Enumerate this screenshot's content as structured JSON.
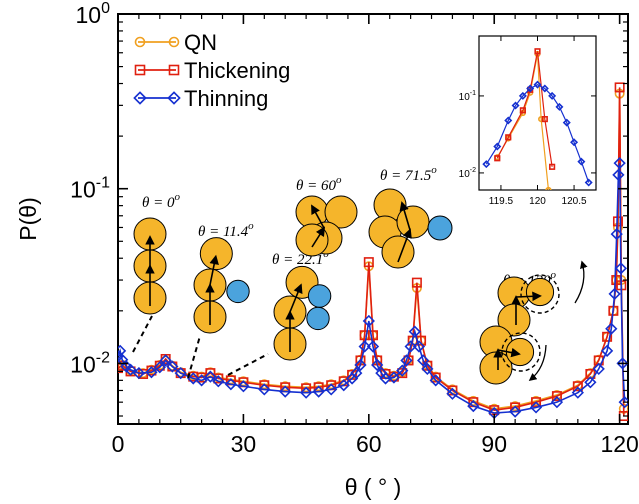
{
  "chart_data": {
    "type": "line",
    "xlabel": "θ ( ° )",
    "ylabel": "P(θ)",
    "xlim": [
      0,
      122
    ],
    "ylim": [
      0.0045,
      1.0
    ],
    "yscale": "log",
    "xticks": [
      0,
      30,
      60,
      90,
      120
    ],
    "xtick_labels": [
      "0",
      "30",
      "60",
      "90",
      "120"
    ],
    "ytick_labels": [
      {
        "base": "10",
        "exp": "0"
      },
      {
        "base": "10",
        "exp": "-1"
      },
      {
        "base": "10",
        "exp": "-2"
      }
    ],
    "grid": false,
    "legend_position": "top-left",
    "series": [
      {
        "name": "QN",
        "color": "#f0a020",
        "marker": "circle",
        "x": [
          0,
          1,
          3,
          6,
          8,
          10,
          11.4,
          13,
          15,
          18,
          20,
          22.1,
          24,
          27,
          30,
          35,
          40,
          45,
          48,
          51,
          54,
          56,
          58,
          59,
          60,
          61,
          62,
          64,
          66,
          68,
          69.5,
          70.5,
          71.5,
          72.5,
          74,
          76,
          80,
          85,
          90,
          95,
          100,
          105,
          110,
          113,
          115,
          117,
          118.5,
          119.2,
          119.6,
          120,
          120.4,
          121
        ],
        "y": [
          0.0095,
          0.0098,
          0.0091,
          0.0088,
          0.0092,
          0.0098,
          0.0104,
          0.0097,
          0.0089,
          0.0085,
          0.0084,
          0.0089,
          0.0083,
          0.0081,
          0.0079,
          0.0076,
          0.0074,
          0.0073,
          0.0074,
          0.0076,
          0.008,
          0.0087,
          0.0105,
          0.0145,
          0.036,
          0.0145,
          0.0105,
          0.0088,
          0.0085,
          0.0089,
          0.0105,
          0.0135,
          0.027,
          0.0135,
          0.0098,
          0.0084,
          0.0071,
          0.0061,
          0.0055,
          0.0057,
          0.0061,
          0.0066,
          0.0075,
          0.0088,
          0.0105,
          0.0142,
          0.02,
          0.03,
          0.06,
          0.35,
          0.03,
          0.0055
        ]
      },
      {
        "name": "Thickening",
        "color": "#e02010",
        "marker": "square",
        "x": [
          0,
          1,
          3,
          6,
          8,
          10,
          11.4,
          13,
          15,
          18,
          20,
          22.1,
          24,
          27,
          30,
          35,
          40,
          45,
          48,
          51,
          54,
          56,
          58,
          59,
          60,
          61,
          62,
          64,
          66,
          68,
          69.5,
          70.5,
          71.5,
          72.5,
          74,
          76,
          80,
          85,
          90,
          95,
          100,
          105,
          110,
          113,
          115,
          117,
          118.5,
          119.2,
          119.6,
          120,
          120.4,
          121
        ],
        "y": [
          0.0094,
          0.0097,
          0.009,
          0.0087,
          0.0091,
          0.0097,
          0.0106,
          0.0096,
          0.0088,
          0.0084,
          0.0083,
          0.0088,
          0.0082,
          0.008,
          0.0078,
          0.0075,
          0.0073,
          0.0072,
          0.0073,
          0.0075,
          0.0079,
          0.0086,
          0.0104,
          0.0145,
          0.038,
          0.0145,
          0.0104,
          0.0087,
          0.0084,
          0.0088,
          0.0104,
          0.0135,
          0.029,
          0.0135,
          0.0097,
          0.0083,
          0.007,
          0.006,
          0.0054,
          0.0056,
          0.006,
          0.0065,
          0.0074,
          0.0087,
          0.0104,
          0.0142,
          0.02,
          0.03,
          0.065,
          0.38,
          0.028,
          0.005
        ]
      },
      {
        "name": "Thinning",
        "color": "#1530d0",
        "marker": "diamond",
        "x": [
          0,
          0.5,
          1,
          2,
          3,
          5,
          8,
          10,
          11.4,
          13,
          15,
          18,
          20,
          22.1,
          24,
          27,
          30,
          35,
          40,
          45,
          48,
          51,
          54,
          56,
          57,
          58,
          59,
          60,
          61,
          62,
          63,
          64,
          66,
          68,
          69,
          70,
          71,
          72,
          73,
          74,
          76,
          80,
          85,
          90,
          95,
          100,
          105,
          110,
          113,
          115,
          117,
          118,
          118.8,
          119.3,
          119.7,
          120,
          120.3,
          120.7,
          121.2
        ],
        "y": [
          0.011,
          0.0118,
          0.0105,
          0.0096,
          0.0092,
          0.0088,
          0.0089,
          0.0095,
          0.0104,
          0.0096,
          0.0088,
          0.0082,
          0.008,
          0.0084,
          0.0079,
          0.0076,
          0.0074,
          0.0071,
          0.0069,
          0.0068,
          0.0069,
          0.0071,
          0.0075,
          0.0082,
          0.0088,
          0.0098,
          0.0125,
          0.0175,
          0.0125,
          0.0098,
          0.0088,
          0.0082,
          0.0083,
          0.0091,
          0.0104,
          0.0125,
          0.0152,
          0.0125,
          0.0104,
          0.0093,
          0.008,
          0.0067,
          0.0057,
          0.0052,
          0.0053,
          0.0056,
          0.006,
          0.0068,
          0.0078,
          0.0093,
          0.0118,
          0.0158,
          0.025,
          0.055,
          0.12,
          0.14,
          0.035,
          0.01,
          0.006
        ]
      }
    ],
    "annotations": [
      {
        "theta": "0",
        "text_lhs": "θ = 0",
        "text_sup": "o",
        "label_x": 0,
        "arrow_angle": 0,
        "blue_count": 0
      },
      {
        "theta": "11.4",
        "text_lhs": "θ = 11.4",
        "text_sup": "o",
        "label_x": 11.4,
        "arrow_angle": 11.4,
        "blue_count": 1
      },
      {
        "theta": "22.1",
        "text_lhs": "θ = 22.1",
        "text_sup": "o",
        "label_x": 22.1,
        "arrow_angle": 22.1,
        "blue_count": 2
      },
      {
        "theta": "60",
        "text_lhs": "θ = 60",
        "text_sup": "o",
        "label_x": 60,
        "arrow_angle": 60,
        "blue_count": 0
      },
      {
        "theta": "71.5",
        "text_lhs": "θ = 71.5",
        "text_sup": "o",
        "label_x": 71.5,
        "arrow_angle": 71.5,
        "blue_count": 1
      },
      {
        "theta": "120",
        "text_lhs": "θ = 120",
        "text_sup": "o",
        "label_x": 120,
        "arrow_angle": 120,
        "blue_count": 0
      }
    ],
    "inset": {
      "xlim": [
        119.2,
        120.8
      ],
      "ylim": [
        0.006,
        0.6
      ],
      "yscale": "log",
      "xticks": [
        119.5,
        120,
        120.5
      ],
      "xtick_labels": [
        "119.5",
        "120",
        "120.5"
      ],
      "ytick_labels": [
        {
          "base": "10",
          "exp": "-1"
        },
        {
          "base": "10",
          "exp": "-2"
        }
      ],
      "series": [
        {
          "name": "QN",
          "x": [
            119.45,
            119.6,
            119.8,
            119.9,
            120.0,
            120.05,
            120.15
          ],
          "y": [
            0.016,
            0.028,
            0.06,
            0.11,
            0.35,
            0.05,
            0.006
          ]
        },
        {
          "name": "Thickening",
          "x": [
            119.45,
            119.6,
            119.8,
            119.9,
            120.0,
            120.1,
            120.2
          ],
          "y": [
            0.0155,
            0.029,
            0.065,
            0.12,
            0.38,
            0.05,
            0.012
          ]
        },
        {
          "name": "Thinning",
          "x": [
            119.3,
            119.45,
            119.6,
            119.7,
            119.8,
            119.9,
            120.0,
            120.1,
            120.2,
            120.3,
            120.4,
            120.5,
            120.6,
            120.7
          ],
          "y": [
            0.013,
            0.022,
            0.048,
            0.075,
            0.1,
            0.125,
            0.14,
            0.125,
            0.1,
            0.072,
            0.045,
            0.025,
            0.014,
            0.0075
          ]
        }
      ]
    }
  }
}
